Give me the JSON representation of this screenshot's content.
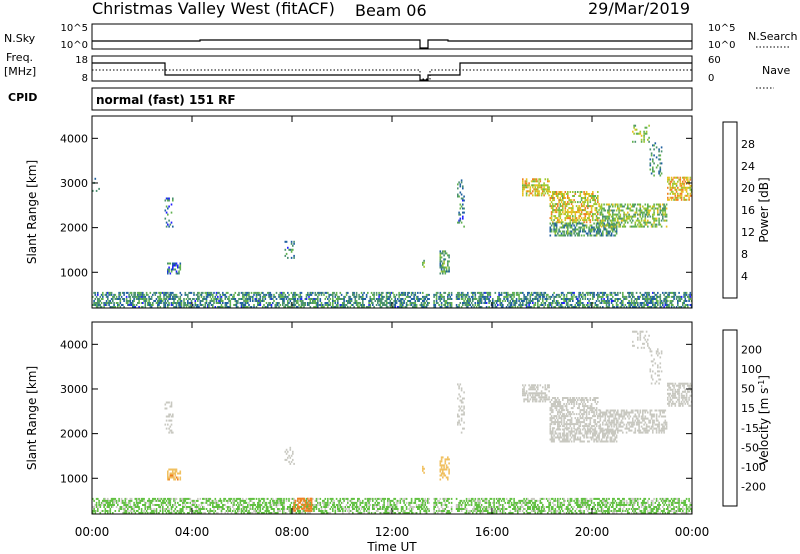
{
  "header": {
    "station": "Christmas Valley West (fitACF)",
    "beam": "Beam 06",
    "date": "29/Mar/2019"
  },
  "summary_panels": {
    "nsky_label": "N.Sky",
    "nsky_ticks": [
      "10^5",
      "10^0"
    ],
    "nsearch_label": "N.Search",
    "nsearch_ticks": [
      "10^5",
      "10^0"
    ],
    "freq_label_line1": "Freq.",
    "freq_label_line2": "[MHz]",
    "freq_ticks": [
      "18",
      "8"
    ],
    "nave_label": "Nave",
    "nave_ticks": [
      "60",
      "0"
    ],
    "cpid_label": "CPID",
    "cpid_value": "normal (fast) 151 RF"
  },
  "x_axis": {
    "title": "Time UT",
    "ticks": [
      "00:00",
      "04:00",
      "08:00",
      "12:00",
      "16:00",
      "20:00",
      "00:00"
    ],
    "range_hours": [
      0,
      24
    ]
  },
  "colors": {
    "power_scale": [
      "#2020ff",
      "#2060a0",
      "#4a9070",
      "#60b050",
      "#a0c830",
      "#e8c020",
      "#f08020",
      "#f04020",
      "#ff1010"
    ],
    "velocity_scale": [
      "#1030c8",
      "#2050a0",
      "#308050",
      "#60c040",
      "#c8c8c0",
      "#f0c060",
      "#f08020",
      "#e04010",
      "#ff1010"
    ],
    "line": "#000000"
  },
  "chart_data": [
    {
      "type": "heatmap",
      "name": "power",
      "ylabel": "Slant Range [km]",
      "yticks": [
        "1000",
        "2000",
        "3000",
        "4000"
      ],
      "ylim": [
        200,
        4500
      ],
      "xlim": [
        0,
        24
      ],
      "colorbar": {
        "label": "Power [dB]",
        "ticks": [
          "4",
          "8",
          "12",
          "16",
          "20",
          "24",
          "28"
        ],
        "range": [
          0,
          30
        ]
      },
      "regions": [
        {
          "t0": 0.0,
          "t1": 24.0,
          "r0": 200,
          "r1": 560,
          "value": 8,
          "density": "dense"
        },
        {
          "t0": 3.0,
          "t1": 3.5,
          "r0": 950,
          "r1": 1200,
          "value": 7,
          "density": "dense"
        },
        {
          "t0": 2.9,
          "t1": 3.2,
          "r0": 2000,
          "r1": 2700,
          "value": 6,
          "density": "sparse"
        },
        {
          "t0": 7.7,
          "t1": 8.1,
          "r0": 1300,
          "r1": 1700,
          "value": 7,
          "density": "sparse"
        },
        {
          "t0": 13.2,
          "t1": 13.3,
          "r0": 1100,
          "r1": 1250,
          "value": 12,
          "density": "dense"
        },
        {
          "t0": 13.9,
          "t1": 14.3,
          "r0": 950,
          "r1": 1450,
          "value": 10,
          "density": "dense"
        },
        {
          "t0": 14.6,
          "t1": 14.9,
          "r0": 2000,
          "r1": 3100,
          "value": 7,
          "density": "sparse"
        },
        {
          "t0": 17.2,
          "t1": 18.3,
          "r0": 2700,
          "r1": 3100,
          "value": 18,
          "density": "dense"
        },
        {
          "t0": 18.3,
          "t1": 20.3,
          "r0": 2100,
          "r1": 2800,
          "value": 17,
          "density": "dense"
        },
        {
          "t0": 18.3,
          "t1": 21.0,
          "r0": 1800,
          "r1": 2100,
          "value": 9,
          "density": "dense"
        },
        {
          "t0": 20.3,
          "t1": 23.0,
          "r0": 2000,
          "r1": 2500,
          "value": 13,
          "density": "dense"
        },
        {
          "t0": 23.0,
          "t1": 24.0,
          "r0": 2600,
          "r1": 3100,
          "value": 18,
          "density": "dense"
        },
        {
          "t0": 21.6,
          "t1": 22.3,
          "r0": 3900,
          "r1": 4300,
          "value": 14,
          "density": "sparse"
        },
        {
          "t0": 22.3,
          "t1": 22.8,
          "r0": 3100,
          "r1": 3900,
          "value": 9,
          "density": "sparse"
        },
        {
          "t0": 0.0,
          "t1": 0.3,
          "r0": 2800,
          "r1": 3100,
          "value": 6,
          "density": "sparse"
        }
      ],
      "gaps": [
        [
          13.5,
          13.65
        ],
        [
          14.4,
          14.55
        ]
      ]
    },
    {
      "type": "heatmap",
      "name": "velocity",
      "ylabel": "Slant Range [km]",
      "yticks": [
        "1000",
        "2000",
        "3000",
        "4000"
      ],
      "ylim": [
        200,
        4500
      ],
      "xlim": [
        0,
        24
      ],
      "colorbar": {
        "label": "Velocity [m s",
        "label_sup": "-1",
        "label_end": "]",
        "ticks": [
          "200",
          "100",
          "50",
          "15",
          "-15",
          "-50",
          "-100",
          "-200"
        ],
        "range": [
          -250,
          250
        ]
      },
      "regions": [
        {
          "t0": 0.0,
          "t1": 24.0,
          "r0": 200,
          "r1": 560,
          "value": 30,
          "density": "dense"
        },
        {
          "t0": 3.0,
          "t1": 3.5,
          "r0": 950,
          "r1": 1200,
          "value": -80,
          "density": "dense"
        },
        {
          "t0": 2.9,
          "t1": 3.2,
          "r0": 2000,
          "r1": 2700,
          "value": -20,
          "density": "sparse"
        },
        {
          "t0": 7.7,
          "t1": 8.1,
          "r0": 1300,
          "r1": 1700,
          "value": 0,
          "density": "sparse"
        },
        {
          "t0": 8.0,
          "t1": 8.8,
          "r0": 250,
          "r1": 550,
          "value": -90,
          "density": "dense"
        },
        {
          "t0": 13.2,
          "t1": 13.3,
          "r0": 1100,
          "r1": 1250,
          "value": -60,
          "density": "dense"
        },
        {
          "t0": 13.9,
          "t1": 14.3,
          "r0": 950,
          "r1": 1450,
          "value": -40,
          "density": "dense"
        },
        {
          "t0": 14.6,
          "t1": 14.9,
          "r0": 2000,
          "r1": 3100,
          "value": 0,
          "density": "sparse"
        },
        {
          "t0": 17.2,
          "t1": 18.3,
          "r0": 2700,
          "r1": 3100,
          "value": 0,
          "density": "dense"
        },
        {
          "t0": 18.3,
          "t1": 20.3,
          "r0": 2100,
          "r1": 2800,
          "value": 0,
          "density": "dense"
        },
        {
          "t0": 18.3,
          "t1": 21.0,
          "r0": 1800,
          "r1": 2100,
          "value": -20,
          "density": "dense"
        },
        {
          "t0": 20.3,
          "t1": 23.0,
          "r0": 2000,
          "r1": 2500,
          "value": 0,
          "density": "dense"
        },
        {
          "t0": 23.0,
          "t1": 24.0,
          "r0": 2600,
          "r1": 3100,
          "value": 0,
          "density": "dense"
        },
        {
          "t0": 21.6,
          "t1": 22.3,
          "r0": 3900,
          "r1": 4300,
          "value": 0,
          "density": "sparse"
        },
        {
          "t0": 22.3,
          "t1": 22.8,
          "r0": 3100,
          "r1": 3900,
          "value": 0,
          "density": "sparse"
        }
      ],
      "gaps": [
        [
          13.5,
          13.65
        ],
        [
          14.4,
          14.55
        ]
      ]
    }
  ]
}
